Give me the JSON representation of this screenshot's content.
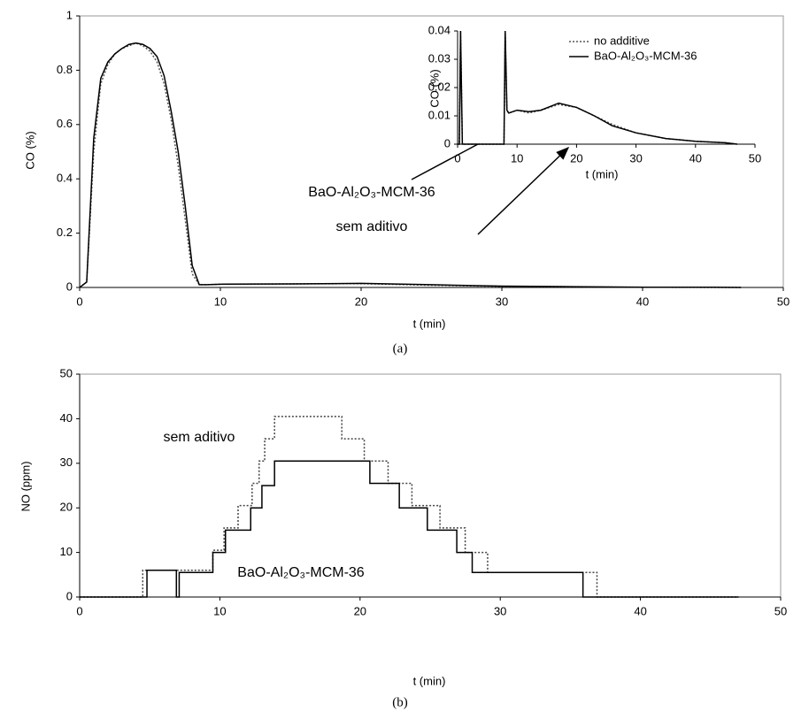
{
  "chart_data": [
    {
      "type": "line",
      "caption": "(a)",
      "xlabel": "t (min)",
      "ylabel": "CO (%)",
      "xlim": [
        0,
        50
      ],
      "xticks": [
        0,
        10,
        20,
        30,
        40,
        50
      ],
      "ylim": [
        0,
        1
      ],
      "yticks": [
        0,
        0.2,
        0.4,
        0.6,
        0.8,
        1
      ],
      "x": [
        0,
        0.5,
        1,
        1.5,
        2,
        2.5,
        3,
        3.5,
        4,
        4.5,
        5,
        5.5,
        6,
        6.5,
        7,
        7.5,
        8,
        8.5,
        9,
        10,
        15,
        20,
        25,
        30,
        35,
        40,
        45,
        47
      ],
      "series": [
        {
          "color": "#555555",
          "dash": "dotted",
          "values": [
            0,
            0.02,
            0.5,
            0.75,
            0.82,
            0.86,
            0.88,
            0.89,
            0.9,
            0.89,
            0.87,
            0.83,
            0.75,
            0.62,
            0.45,
            0.25,
            0.05,
            0.01,
            0.01,
            0.012,
            0.013,
            0.014,
            0.008,
            0.004,
            0.002,
            0.001,
            0,
            0
          ]
        },
        {
          "color": "#000000",
          "dash": "solid",
          "values": [
            0,
            0.02,
            0.55,
            0.77,
            0.83,
            0.86,
            0.88,
            0.895,
            0.9,
            0.895,
            0.88,
            0.85,
            0.78,
            0.65,
            0.5,
            0.3,
            0.08,
            0.01,
            0.01,
            0.012,
            0.013,
            0.015,
            0.01,
            0.005,
            0.003,
            0.001,
            0.001,
            0
          ]
        }
      ],
      "annotations": [
        "BaO-Al₂O₃-MCM-36",
        "sem aditivo"
      ]
    },
    {
      "type": "line",
      "xlabel": "t (min)",
      "ylabel": "CO (%)",
      "xlim": [
        0,
        50
      ],
      "xticks": [
        0,
        10,
        20,
        30,
        40,
        50
      ],
      "ylim": [
        0,
        0.04
      ],
      "yticks": [
        0,
        0.01,
        0.02,
        0.03,
        0.04
      ],
      "legend": "upper right",
      "x": [
        0,
        0.3,
        0.5,
        0.8,
        1,
        7.8,
        8,
        8.3,
        8.6,
        10,
        12,
        14,
        17,
        20,
        23,
        26,
        30,
        35,
        40,
        45,
        47
      ],
      "series": [
        {
          "name": "no additive",
          "color": "#555555",
          "dash": "dotted",
          "values": [
            0,
            0,
            0.04,
            0,
            0,
            0,
            0.04,
            0.012,
            0.011,
            0.012,
            0.011,
            0.012,
            0.014,
            0.013,
            0.01,
            0.007,
            0.004,
            0.002,
            0.001,
            0.0005,
            0
          ]
        },
        {
          "name": "BaO-Al₂O₃-MCM-36",
          "color": "#000000",
          "dash": "solid",
          "values": [
            0,
            0,
            0.04,
            0,
            0,
            0,
            0.04,
            0.012,
            0.011,
            0.012,
            0.0115,
            0.012,
            0.0145,
            0.013,
            0.01,
            0.0065,
            0.004,
            0.002,
            0.001,
            0.0005,
            0
          ]
        }
      ]
    },
    {
      "type": "step",
      "caption": "(b)",
      "xlabel": "t (min)",
      "ylabel": "NO (ppm)",
      "xlim": [
        0,
        50
      ],
      "xticks": [
        0,
        10,
        20,
        30,
        40,
        50
      ],
      "ylim": [
        0,
        50
      ],
      "yticks": [
        0,
        10,
        20,
        30,
        40,
        50
      ],
      "series": [
        {
          "color": "#444444",
          "dash": "dotted",
          "x": [
            0,
            4.5,
            9.5,
            10.3,
            11.3,
            12.3,
            12.8,
            13.2,
            13.9,
            18.7,
            20.3,
            22,
            23.7,
            25.7,
            27.5,
            29.1,
            36.9,
            47
          ],
          "values": [
            0,
            6,
            10.5,
            15.5,
            20.5,
            25.5,
            30.5,
            35.5,
            40.5,
            35.5,
            30.5,
            25.5,
            20.5,
            15.5,
            10,
            5.5,
            0,
            0
          ]
        },
        {
          "color": "#000000",
          "dash": "solid",
          "x": [
            0,
            4.8,
            5.1,
            6.9,
            7.1,
            9.5,
            10.4,
            12.2,
            13,
            13.9,
            20.7,
            22.8,
            24.8,
            26.9,
            28,
            35.9,
            47
          ],
          "values": [
            0,
            6,
            6,
            0,
            5.5,
            10,
            15,
            20,
            25,
            30.5,
            25.5,
            20,
            15,
            10,
            5.5,
            0,
            0
          ]
        }
      ],
      "annotations": [
        "sem aditivo",
        "BaO-Al₂O₃-MCM-36"
      ]
    }
  ]
}
